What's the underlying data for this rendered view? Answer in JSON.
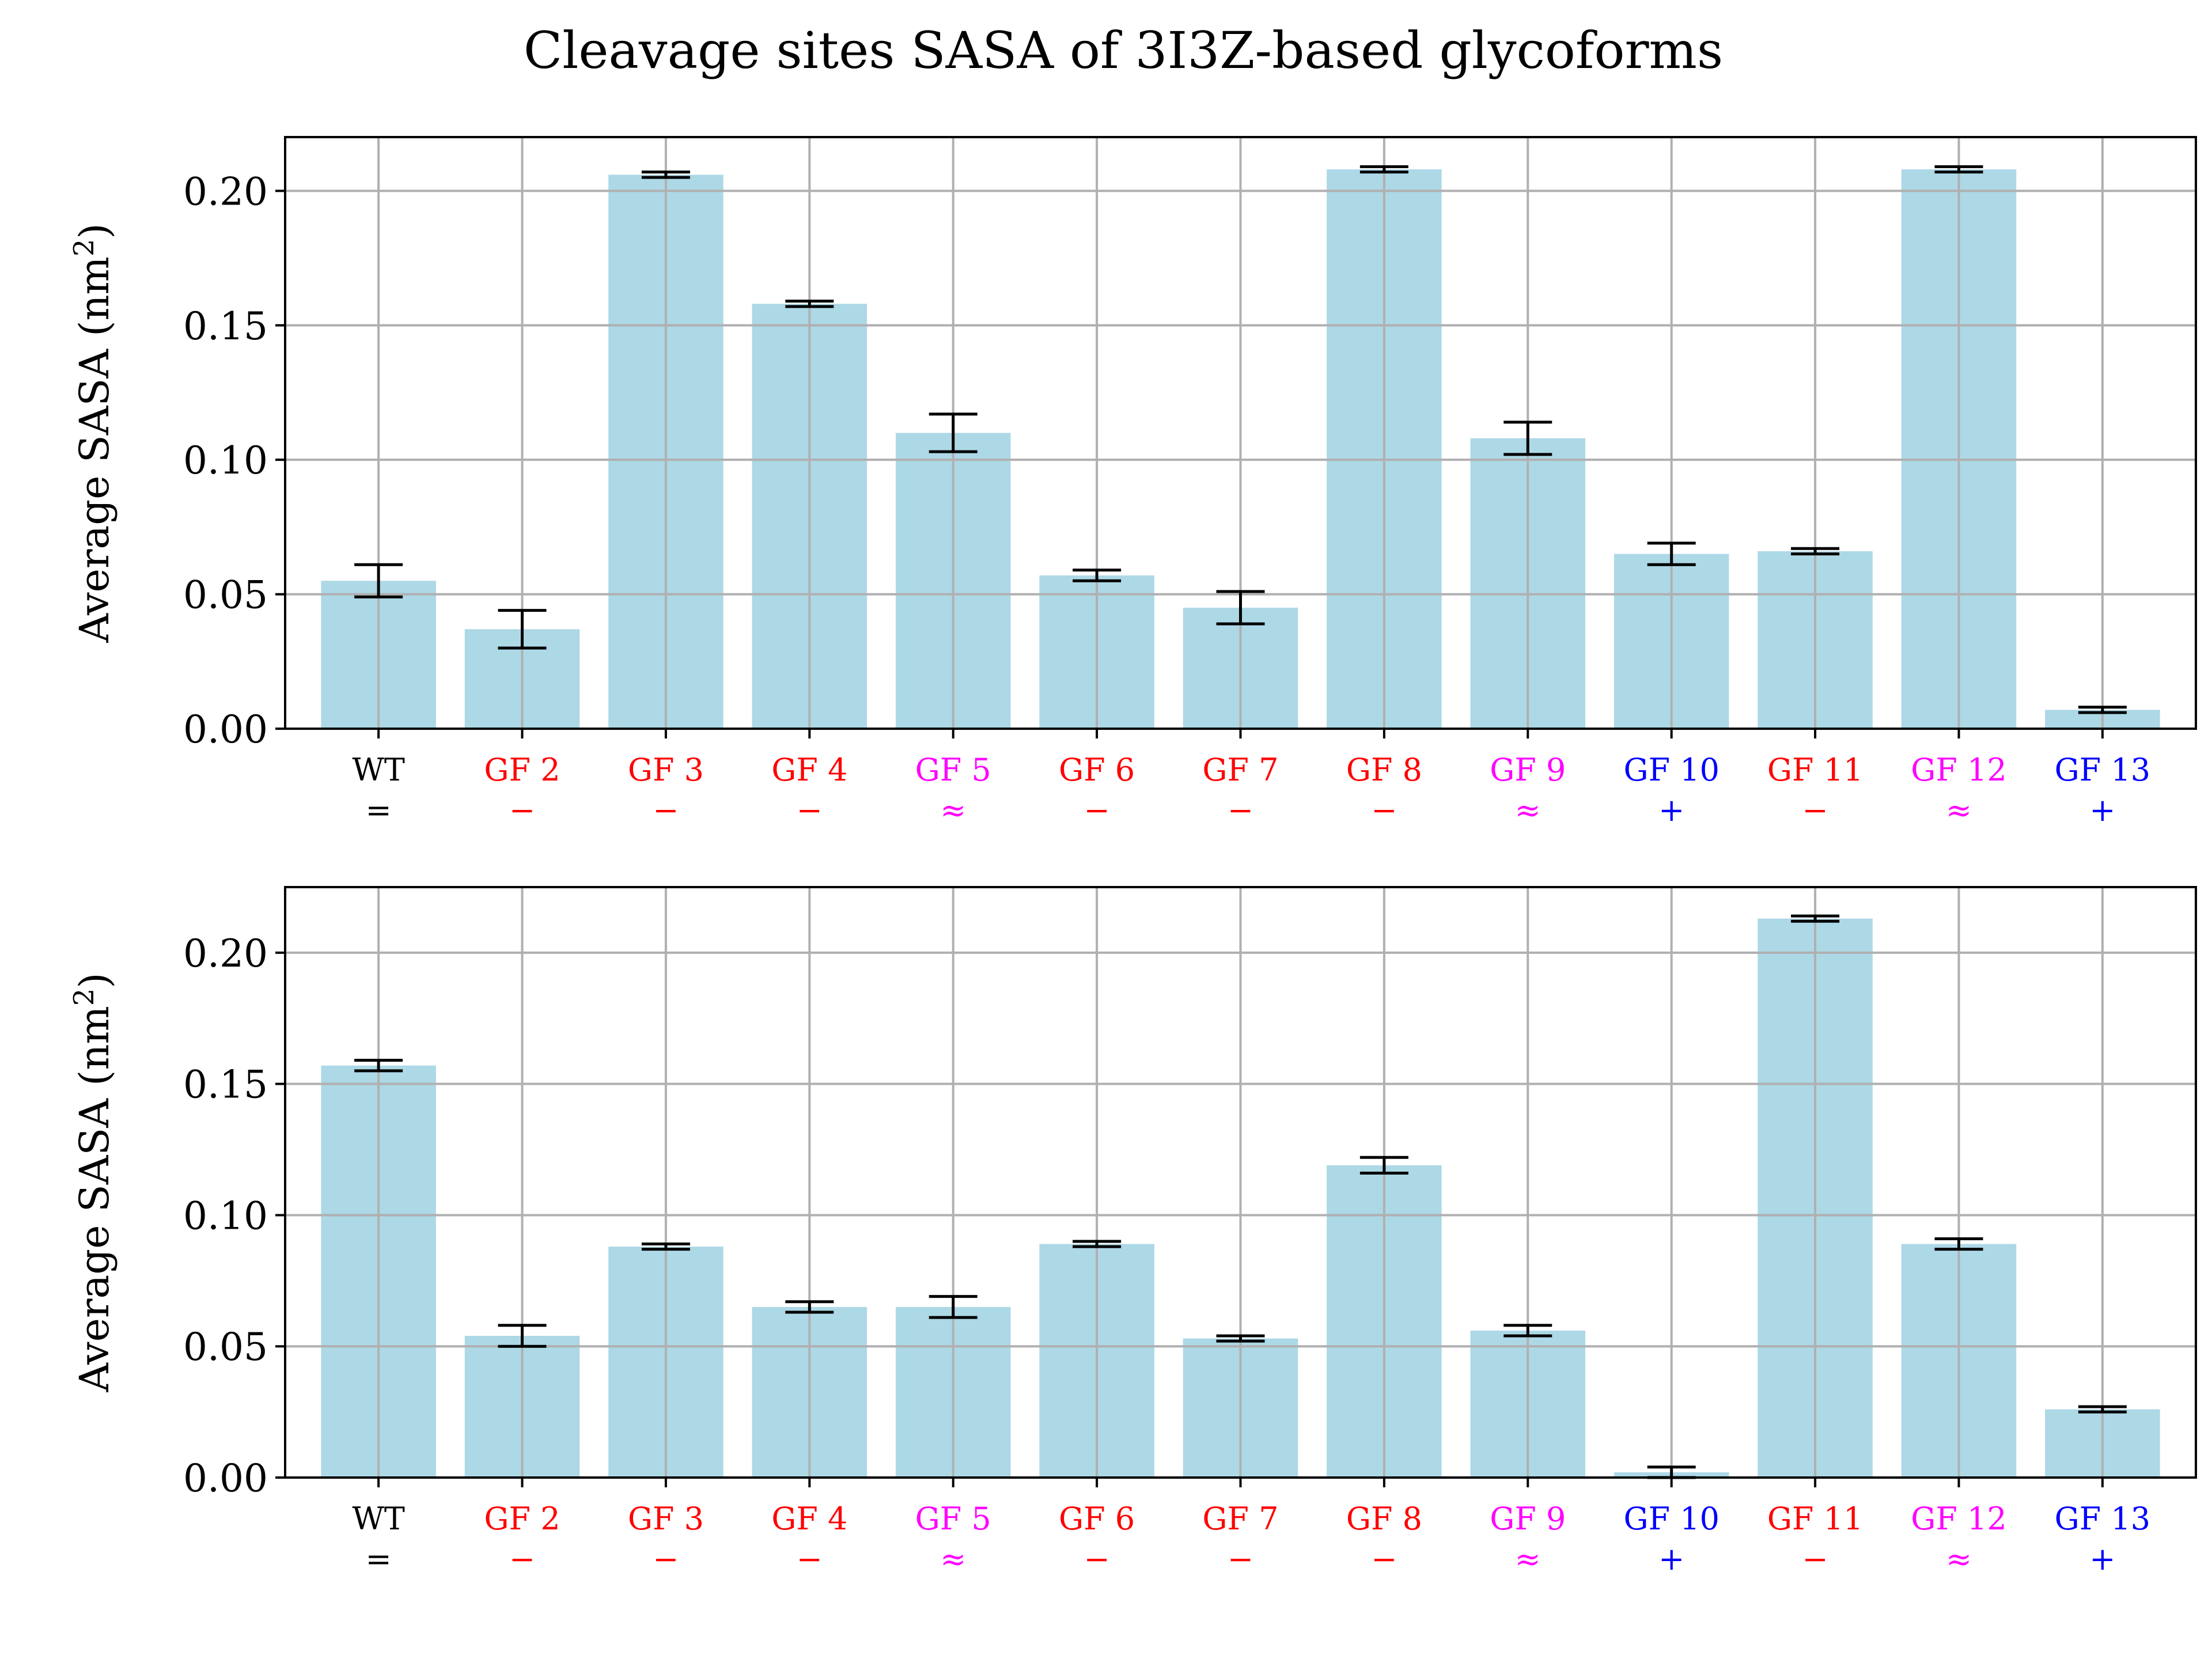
{
  "title": "Cleavage sites SASA of 3I3Z-based glycoforms",
  "colors": {
    "bar": "#add8e6",
    "grid": "#b0b0b0",
    "errorbar": "#000000",
    "equal": "#000000",
    "minus": "#ff0000",
    "approx": "#ff00ff",
    "plus": "#0000ff"
  },
  "chart_data": [
    {
      "type": "bar",
      "categories": [
        "WT",
        "GF 2",
        "GF 3",
        "GF 4",
        "GF 5",
        "GF 6",
        "GF 7",
        "GF 8",
        "GF 9",
        "GF 10",
        "GF 11",
        "GF 12",
        "GF 13"
      ],
      "category_symbols": [
        "=",
        "−",
        "−",
        "−",
        "≈",
        "−",
        "−",
        "−",
        "≈",
        "+",
        "−",
        "≈",
        "+"
      ],
      "category_colors": [
        "#000000",
        "#ff0000",
        "#ff0000",
        "#ff0000",
        "#ff00ff",
        "#ff0000",
        "#ff0000",
        "#ff0000",
        "#ff00ff",
        "#0000ff",
        "#ff0000",
        "#ff00ff",
        "#0000ff"
      ],
      "values": [
        0.055,
        0.037,
        0.206,
        0.158,
        0.11,
        0.057,
        0.045,
        0.208,
        0.108,
        0.065,
        0.066,
        0.208,
        0.007
      ],
      "errors": [
        0.006,
        0.007,
        0.001,
        0.001,
        0.007,
        0.002,
        0.006,
        0.001,
        0.006,
        0.004,
        0.001,
        0.001,
        0.001
      ],
      "ylabel_main": "Average SASA (nm",
      "ylabel_sup": "2",
      "ylabel_end": ")",
      "yticks": [
        "0.00",
        "0.05",
        "0.10",
        "0.15",
        "0.20"
      ],
      "ylim": [
        0,
        0.22
      ],
      "grid": true
    },
    {
      "type": "bar",
      "categories": [
        "WT",
        "GF 2",
        "GF 3",
        "GF 4",
        "GF 5",
        "GF 6",
        "GF 7",
        "GF 8",
        "GF 9",
        "GF 10",
        "GF 11",
        "GF 12",
        "GF 13"
      ],
      "category_symbols": [
        "=",
        "−",
        "−",
        "−",
        "≈",
        "−",
        "−",
        "−",
        "≈",
        "+",
        "−",
        "≈",
        "+"
      ],
      "category_colors": [
        "#000000",
        "#ff0000",
        "#ff0000",
        "#ff0000",
        "#ff00ff",
        "#ff0000",
        "#ff0000",
        "#ff0000",
        "#ff00ff",
        "#0000ff",
        "#ff0000",
        "#ff00ff",
        "#0000ff"
      ],
      "values": [
        0.157,
        0.054,
        0.088,
        0.065,
        0.065,
        0.089,
        0.053,
        0.119,
        0.056,
        0.002,
        0.213,
        0.089,
        0.026
      ],
      "errors": [
        0.002,
        0.004,
        0.001,
        0.002,
        0.004,
        0.001,
        0.001,
        0.003,
        0.002,
        0.002,
        0.001,
        0.002,
        0.001
      ],
      "ylabel_main": "Average SASA (nm",
      "ylabel_sup": "2",
      "ylabel_end": ")",
      "yticks": [
        "0.00",
        "0.05",
        "0.10",
        "0.15",
        "0.20"
      ],
      "ylim": [
        0,
        0.225
      ],
      "grid": true
    }
  ]
}
